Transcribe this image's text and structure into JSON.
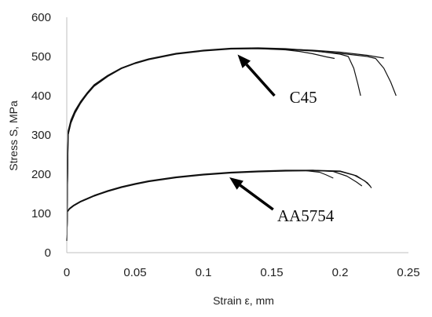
{
  "chart_data": {
    "type": "line",
    "title": "",
    "xlabel": "Strain ε, mm",
    "ylabel": "Stress S, MPa",
    "xlim": [
      0,
      0.25
    ],
    "ylim": [
      0,
      600
    ],
    "xticks": [
      0,
      0.05,
      0.1,
      0.15,
      0.2,
      0.25
    ],
    "xtick_labels": [
      "0",
      "0.05",
      "0.1",
      "0.15",
      "0.2",
      "0.25"
    ],
    "yticks": [
      0,
      100,
      200,
      300,
      400,
      500,
      600
    ],
    "ytick_labels": [
      "0",
      "100",
      "200",
      "300",
      "400",
      "500",
      "600"
    ],
    "grid": false,
    "legend": "none",
    "annotations": [
      {
        "text": "C45",
        "arrow_tip": [
          0.125,
          505
        ],
        "arrow_tail": [
          0.152,
          400
        ],
        "label_pos": [
          0.163,
          382
        ]
      },
      {
        "text": "AA5754",
        "arrow_tip": [
          0.119,
          192
        ],
        "arrow_tail": [
          0.151,
          110
        ],
        "label_pos": [
          0.154,
          80
        ]
      }
    ],
    "series": [
      {
        "group": "C45",
        "x": [
          0,
          0.001,
          0.003,
          0.006,
          0.01,
          0.015,
          0.02,
          0.03,
          0.04,
          0.05,
          0.06,
          0.08,
          0.1,
          0.12,
          0.14,
          0.16,
          0.17,
          0.18,
          0.19,
          0.196
        ],
        "y": [
          30,
          300,
          330,
          355,
          380,
          405,
          425,
          450,
          470,
          483,
          493,
          507,
          515,
          520,
          520,
          517,
          513,
          507,
          499,
          495
        ]
      },
      {
        "group": "C45",
        "x": [
          0,
          0.001,
          0.003,
          0.006,
          0.01,
          0.015,
          0.02,
          0.03,
          0.04,
          0.05,
          0.06,
          0.08,
          0.1,
          0.12,
          0.14,
          0.16,
          0.18,
          0.2,
          0.206,
          0.21,
          0.213,
          0.215
        ],
        "y": [
          30,
          310,
          338,
          362,
          385,
          408,
          428,
          452,
          471,
          484,
          494,
          508,
          516,
          521,
          522,
          520,
          515,
          506,
          500,
          470,
          430,
          400
        ]
      },
      {
        "group": "C45",
        "x": [
          0,
          0.001,
          0.003,
          0.006,
          0.01,
          0.015,
          0.02,
          0.03,
          0.04,
          0.05,
          0.06,
          0.08,
          0.1,
          0.12,
          0.14,
          0.16,
          0.18,
          0.2,
          0.22,
          0.232
        ],
        "y": [
          30,
          305,
          334,
          359,
          383,
          406,
          426,
          451,
          470,
          483,
          493,
          507,
          515,
          520,
          521,
          519,
          516,
          511,
          503,
          496
        ]
      },
      {
        "group": "C45",
        "x": [
          0,
          0.001,
          0.003,
          0.006,
          0.01,
          0.015,
          0.02,
          0.03,
          0.04,
          0.05,
          0.06,
          0.08,
          0.1,
          0.12,
          0.14,
          0.16,
          0.18,
          0.2,
          0.22,
          0.226,
          0.232,
          0.237,
          0.241
        ],
        "y": [
          30,
          300,
          330,
          356,
          381,
          404,
          424,
          449,
          469,
          482,
          492,
          506,
          514,
          519,
          520,
          518,
          514,
          508,
          500,
          495,
          470,
          435,
          400
        ]
      },
      {
        "group": "AA5754",
        "x": [
          0,
          0.0005,
          0.002,
          0.005,
          0.01,
          0.02,
          0.03,
          0.04,
          0.05,
          0.06,
          0.08,
          0.1,
          0.12,
          0.14,
          0.16,
          0.175,
          0.185,
          0.19,
          0.195
        ],
        "y": [
          30,
          105,
          112,
          120,
          130,
          145,
          157,
          167,
          175,
          182,
          192,
          199,
          204,
          207,
          209,
          209,
          205,
          198,
          190
        ]
      },
      {
        "group": "AA5754",
        "x": [
          0,
          0.0005,
          0.002,
          0.005,
          0.01,
          0.02,
          0.03,
          0.04,
          0.05,
          0.06,
          0.08,
          0.1,
          0.12,
          0.14,
          0.16,
          0.18,
          0.195,
          0.205,
          0.212,
          0.216
        ],
        "y": [
          30,
          106,
          113,
          121,
          131,
          146,
          158,
          168,
          176,
          183,
          193,
          200,
          205,
          208,
          210,
          210,
          207,
          195,
          180,
          170
        ]
      },
      {
        "group": "AA5754",
        "x": [
          0,
          0.0005,
          0.002,
          0.005,
          0.01,
          0.02,
          0.03,
          0.04,
          0.05,
          0.06,
          0.08,
          0.1,
          0.12,
          0.14,
          0.16,
          0.18,
          0.2,
          0.21,
          0.218,
          0.222
        ],
        "y": [
          30,
          105,
          112,
          120,
          130,
          145,
          157,
          167,
          175,
          182,
          192,
          199,
          204,
          207,
          209,
          210,
          208,
          198,
          183,
          170
        ]
      },
      {
        "group": "AA5754",
        "x": [
          0,
          0.0005,
          0.002,
          0.005,
          0.01,
          0.02,
          0.03,
          0.04,
          0.05,
          0.06,
          0.08,
          0.1,
          0.12,
          0.14,
          0.16,
          0.18,
          0.2,
          0.212,
          0.22,
          0.223
        ],
        "y": [
          30,
          104,
          111,
          119,
          129,
          144,
          156,
          166,
          174,
          181,
          191,
          198,
          203,
          206,
          208,
          209,
          207,
          196,
          178,
          165
        ]
      }
    ]
  }
}
